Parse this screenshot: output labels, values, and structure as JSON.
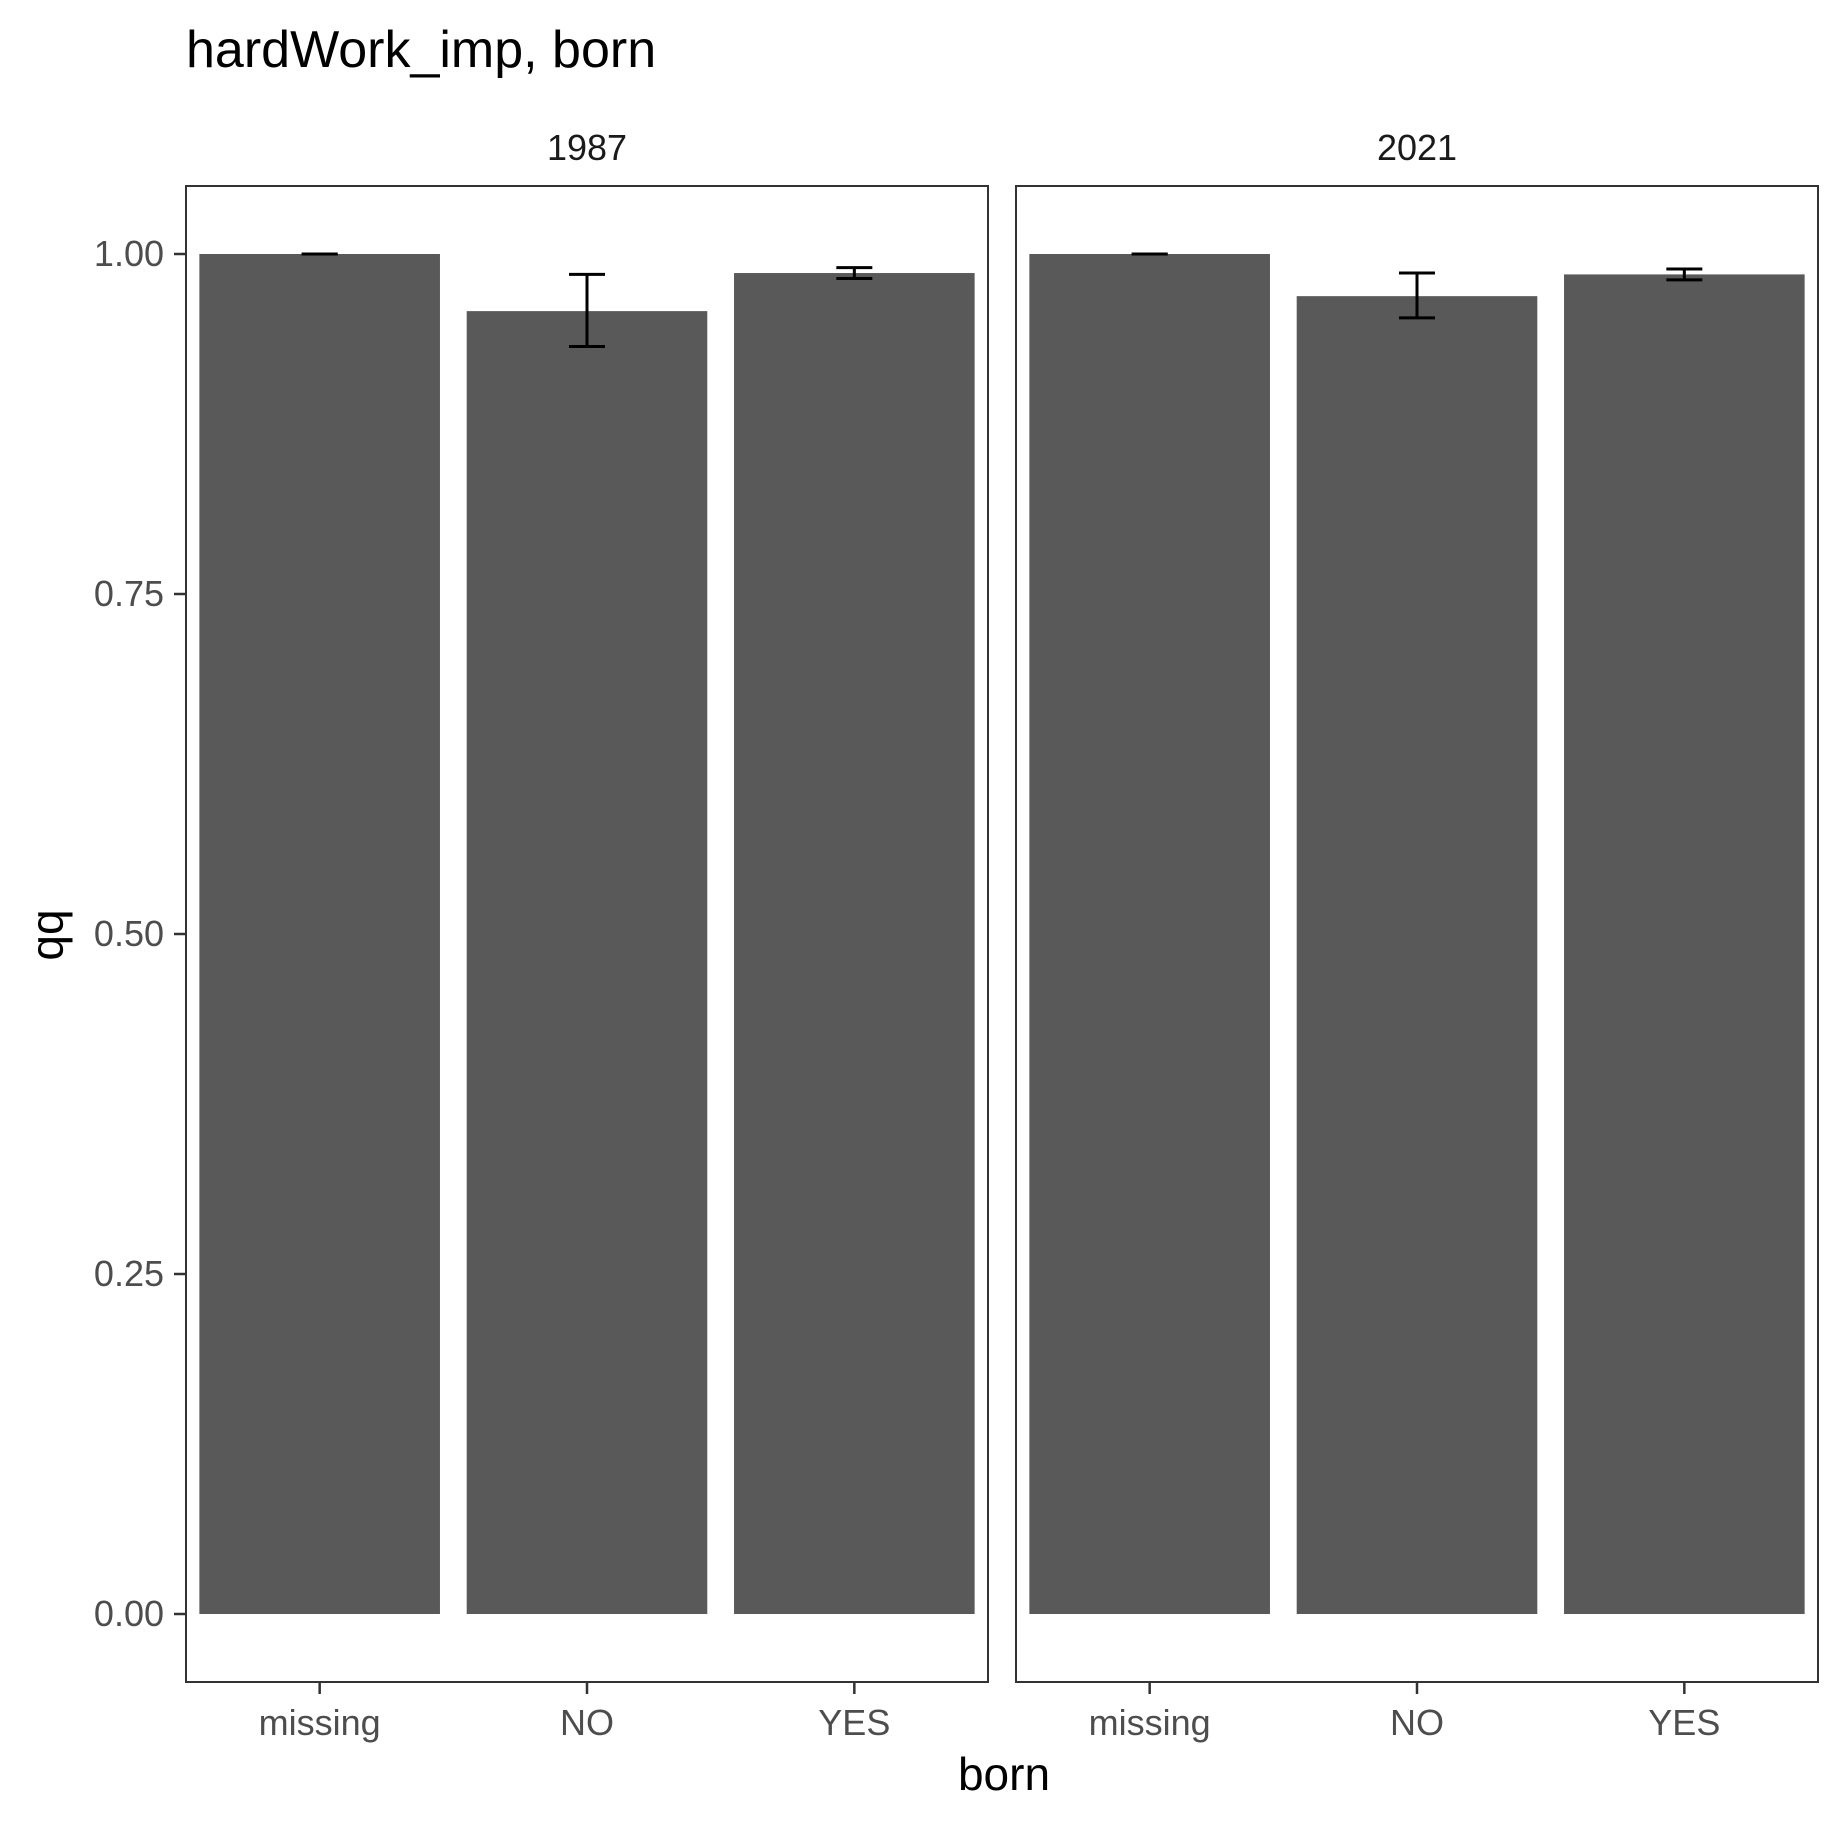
{
  "chart_data": {
    "type": "bar",
    "title": "hardWork_imp, born",
    "xlabel": "born",
    "ylabel": "qq",
    "categories": [
      "missing",
      "NO",
      "YES"
    ],
    "ylim": [
      -0.05,
      1.05
    ],
    "yticks": [
      0.0,
      0.25,
      0.5,
      0.75,
      1.0
    ],
    "ytick_labels": [
      "0.00",
      "0.25",
      "0.50",
      "0.75",
      "1.00"
    ],
    "grid": false,
    "bar_color": "#595959",
    "facets": [
      {
        "label": "1987",
        "values": [
          1.0,
          0.958,
          0.986
        ],
        "error_low": [
          1.0,
          0.932,
          0.982
        ],
        "error_high": [
          1.0,
          0.985,
          0.99
        ]
      },
      {
        "label": "2021",
        "values": [
          1.0,
          0.969,
          0.985
        ],
        "error_low": [
          1.0,
          0.953,
          0.981
        ],
        "error_high": [
          1.0,
          0.986,
          0.989
        ]
      }
    ]
  }
}
